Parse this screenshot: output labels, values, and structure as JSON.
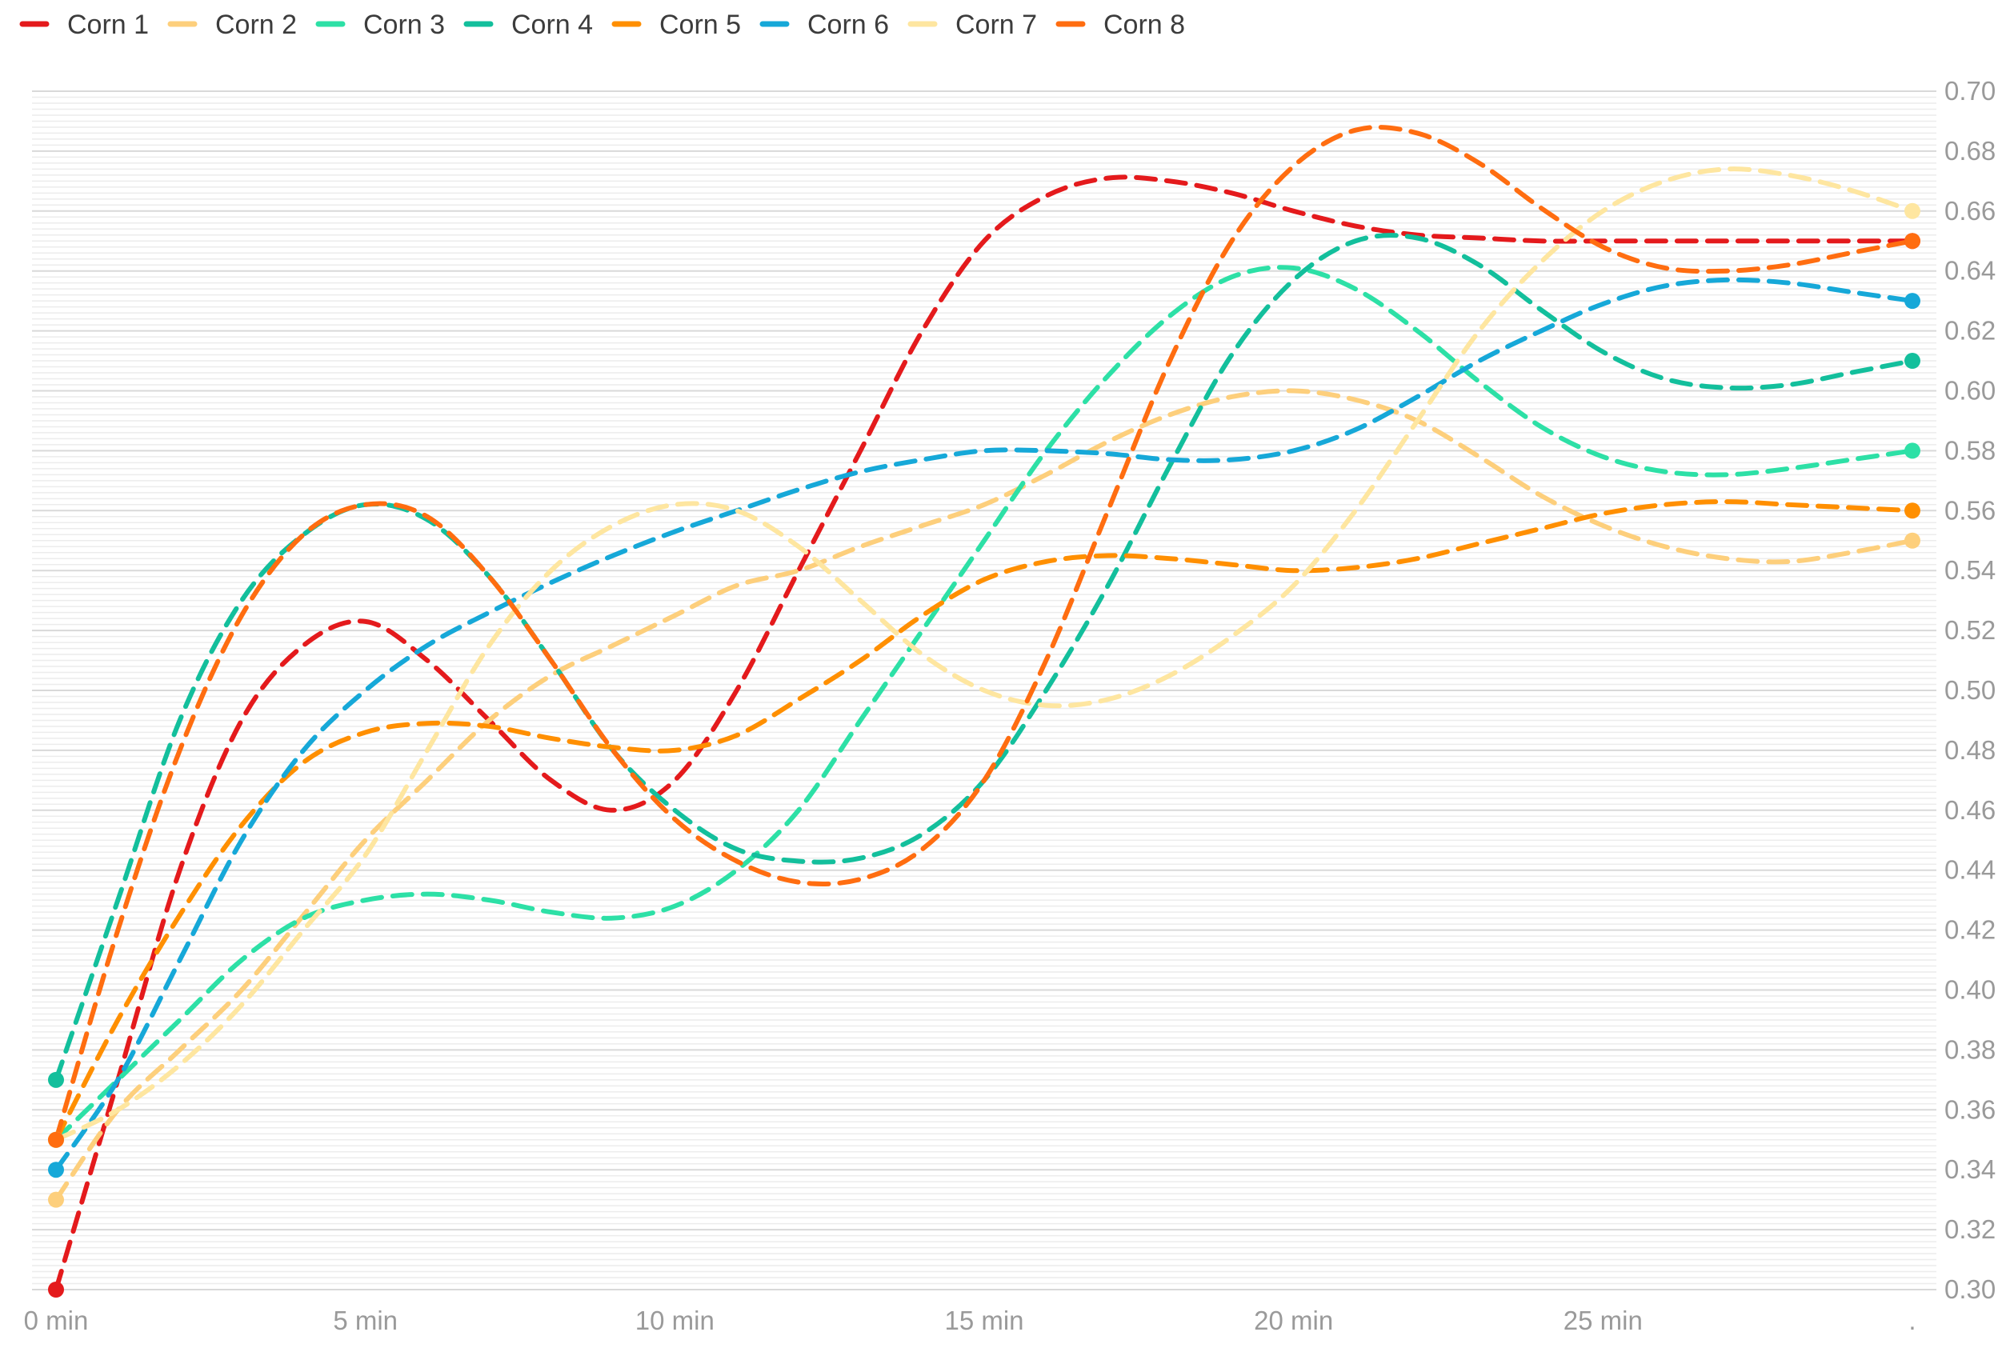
{
  "chart_data": {
    "type": "line",
    "title": "",
    "xlabel": "",
    "ylabel": "",
    "x": [
      0,
      30
    ],
    "x_ticks": [
      0,
      5,
      10,
      15,
      20,
      25
    ],
    "x_tick_labels": [
      "0 min",
      "5 min",
      "10 min",
      "15 min",
      "20 min",
      "25 min"
    ],
    "x_end_label": ".",
    "ylim": [
      0.3,
      0.7
    ],
    "y_ticks": [
      0.3,
      0.32,
      0.34,
      0.36,
      0.38,
      0.4,
      0.42,
      0.44,
      0.46,
      0.48,
      0.5,
      0.52,
      0.54,
      0.56,
      0.58,
      0.6,
      0.62,
      0.64,
      0.66,
      0.68,
      0.7
    ],
    "y_tick_labels": [
      "0.30",
      "0.32",
      "0.34",
      "0.36",
      "0.38",
      "0.40",
      "0.42",
      "0.44",
      "0.46",
      "0.48",
      "0.50",
      "0.52",
      "0.54",
      "0.56",
      "0.58",
      "0.60",
      "0.62",
      "0.64",
      "0.66",
      "0.68",
      "0.70"
    ],
    "grid": true,
    "legend_position": "top-left",
    "line_style": "dashed-smooth",
    "series": [
      {
        "name": "Corn 1",
        "color": "#e41a1c",
        "points": [
          [
            0,
            0.3
          ],
          [
            1,
            0.37
          ],
          [
            2,
            0.44
          ],
          [
            3,
            0.49
          ],
          [
            4,
            0.515
          ],
          [
            5,
            0.523
          ],
          [
            6,
            0.51
          ],
          [
            7,
            0.49
          ],
          [
            8,
            0.47
          ],
          [
            9,
            0.46
          ],
          [
            10,
            0.47
          ],
          [
            11,
            0.5
          ],
          [
            12,
            0.54
          ],
          [
            13,
            0.58
          ],
          [
            14,
            0.62
          ],
          [
            15,
            0.65
          ],
          [
            16,
            0.665
          ],
          [
            17,
            0.671
          ],
          [
            18,
            0.67
          ],
          [
            19,
            0.666
          ],
          [
            20,
            0.66
          ],
          [
            21,
            0.655
          ],
          [
            22,
            0.652
          ],
          [
            23,
            0.651
          ],
          [
            24,
            0.65
          ],
          [
            25,
            0.65
          ],
          [
            26,
            0.65
          ],
          [
            27,
            0.65
          ],
          [
            28,
            0.65
          ],
          [
            29,
            0.65
          ],
          [
            30,
            0.65
          ]
        ]
      },
      {
        "name": "Corn 2",
        "color": "#fdcf7c",
        "points": [
          [
            0,
            0.33
          ],
          [
            1,
            0.36
          ],
          [
            2,
            0.38
          ],
          [
            3,
            0.4
          ],
          [
            4,
            0.425
          ],
          [
            5,
            0.45
          ],
          [
            6,
            0.47
          ],
          [
            7,
            0.49
          ],
          [
            8,
            0.505
          ],
          [
            9,
            0.515
          ],
          [
            10,
            0.525
          ],
          [
            11,
            0.535
          ],
          [
            12,
            0.54
          ],
          [
            13,
            0.548
          ],
          [
            14,
            0.555
          ],
          [
            15,
            0.562
          ],
          [
            16,
            0.572
          ],
          [
            17,
            0.583
          ],
          [
            18,
            0.592
          ],
          [
            19,
            0.598
          ],
          [
            20,
            0.6
          ],
          [
            21,
            0.597
          ],
          [
            22,
            0.59
          ],
          [
            23,
            0.578
          ],
          [
            24,
            0.565
          ],
          [
            25,
            0.555
          ],
          [
            26,
            0.548
          ],
          [
            27,
            0.544
          ],
          [
            28,
            0.543
          ],
          [
            29,
            0.546
          ],
          [
            30,
            0.55
          ]
        ]
      },
      {
        "name": "Corn 3",
        "color": "#2de0a6",
        "points": [
          [
            0,
            0.35
          ],
          [
            1,
            0.37
          ],
          [
            2,
            0.39
          ],
          [
            3,
            0.41
          ],
          [
            4,
            0.424
          ],
          [
            5,
            0.43
          ],
          [
            6,
            0.432
          ],
          [
            7,
            0.43
          ],
          [
            8,
            0.426
          ],
          [
            9,
            0.424
          ],
          [
            10,
            0.428
          ],
          [
            11,
            0.44
          ],
          [
            12,
            0.46
          ],
          [
            13,
            0.49
          ],
          [
            14,
            0.52
          ],
          [
            15,
            0.55
          ],
          [
            16,
            0.58
          ],
          [
            17,
            0.605
          ],
          [
            18,
            0.625
          ],
          [
            19,
            0.638
          ],
          [
            20,
            0.641
          ],
          [
            21,
            0.634
          ],
          [
            22,
            0.62
          ],
          [
            23,
            0.603
          ],
          [
            24,
            0.588
          ],
          [
            25,
            0.578
          ],
          [
            26,
            0.573
          ],
          [
            27,
            0.572
          ],
          [
            28,
            0.574
          ],
          [
            29,
            0.577
          ],
          [
            30,
            0.58
          ]
        ]
      },
      {
        "name": "Corn 4",
        "color": "#13bf9c",
        "points": [
          [
            0,
            0.37
          ],
          [
            1,
            0.43
          ],
          [
            2,
            0.49
          ],
          [
            3,
            0.53
          ],
          [
            4,
            0.552
          ],
          [
            5,
            0.562
          ],
          [
            6,
            0.557
          ],
          [
            7,
            0.538
          ],
          [
            8,
            0.51
          ],
          [
            9,
            0.48
          ],
          [
            10,
            0.46
          ],
          [
            11,
            0.447
          ],
          [
            12,
            0.443
          ],
          [
            13,
            0.444
          ],
          [
            14,
            0.452
          ],
          [
            15,
            0.47
          ],
          [
            16,
            0.5
          ],
          [
            17,
            0.535
          ],
          [
            18,
            0.575
          ],
          [
            19,
            0.612
          ],
          [
            20,
            0.637
          ],
          [
            21,
            0.65
          ],
          [
            22,
            0.651
          ],
          [
            23,
            0.642
          ],
          [
            24,
            0.627
          ],
          [
            25,
            0.613
          ],
          [
            26,
            0.604
          ],
          [
            27,
            0.601
          ],
          [
            28,
            0.602
          ],
          [
            29,
            0.606
          ],
          [
            30,
            0.61
          ]
        ]
      },
      {
        "name": "Corn 5",
        "color": "#ff8f00",
        "points": [
          [
            0,
            0.35
          ],
          [
            1,
            0.39
          ],
          [
            2,
            0.425
          ],
          [
            3,
            0.455
          ],
          [
            4,
            0.476
          ],
          [
            5,
            0.486
          ],
          [
            6,
            0.489
          ],
          [
            7,
            0.488
          ],
          [
            8,
            0.484
          ],
          [
            9,
            0.481
          ],
          [
            10,
            0.48
          ],
          [
            11,
            0.485
          ],
          [
            12,
            0.497
          ],
          [
            13,
            0.51
          ],
          [
            14,
            0.525
          ],
          [
            15,
            0.537
          ],
          [
            16,
            0.543
          ],
          [
            17,
            0.545
          ],
          [
            18,
            0.544
          ],
          [
            19,
            0.542
          ],
          [
            20,
            0.54
          ],
          [
            21,
            0.541
          ],
          [
            22,
            0.544
          ],
          [
            23,
            0.549
          ],
          [
            24,
            0.554
          ],
          [
            25,
            0.559
          ],
          [
            26,
            0.562
          ],
          [
            27,
            0.563
          ],
          [
            28,
            0.562
          ],
          [
            29,
            0.561
          ],
          [
            30,
            0.56
          ]
        ]
      },
      {
        "name": "Corn 6",
        "color": "#16a8d8",
        "points": [
          [
            0,
            0.34
          ],
          [
            1,
            0.37
          ],
          [
            2,
            0.41
          ],
          [
            3,
            0.45
          ],
          [
            4,
            0.48
          ],
          [
            5,
            0.5
          ],
          [
            6,
            0.515
          ],
          [
            7,
            0.526
          ],
          [
            8,
            0.536
          ],
          [
            9,
            0.545
          ],
          [
            10,
            0.553
          ],
          [
            11,
            0.56
          ],
          [
            12,
            0.567
          ],
          [
            13,
            0.573
          ],
          [
            14,
            0.577
          ],
          [
            15,
            0.58
          ],
          [
            16,
            0.58
          ],
          [
            17,
            0.579
          ],
          [
            18,
            0.577
          ],
          [
            19,
            0.577
          ],
          [
            20,
            0.58
          ],
          [
            21,
            0.587
          ],
          [
            22,
            0.598
          ],
          [
            23,
            0.61
          ],
          [
            24,
            0.62
          ],
          [
            25,
            0.629
          ],
          [
            26,
            0.635
          ],
          [
            27,
            0.637
          ],
          [
            28,
            0.636
          ],
          [
            29,
            0.633
          ],
          [
            30,
            0.63
          ]
        ]
      },
      {
        "name": "Corn 7",
        "color": "#fee6a0",
        "points": [
          [
            0,
            0.35
          ],
          [
            1,
            0.36
          ],
          [
            2,
            0.375
          ],
          [
            3,
            0.395
          ],
          [
            4,
            0.42
          ],
          [
            5,
            0.445
          ],
          [
            6,
            0.48
          ],
          [
            7,
            0.515
          ],
          [
            8,
            0.54
          ],
          [
            9,
            0.555
          ],
          [
            10,
            0.562
          ],
          [
            11,
            0.56
          ],
          [
            12,
            0.548
          ],
          [
            13,
            0.53
          ],
          [
            14,
            0.512
          ],
          [
            15,
            0.5
          ],
          [
            16,
            0.495
          ],
          [
            17,
            0.497
          ],
          [
            18,
            0.505
          ],
          [
            19,
            0.518
          ],
          [
            20,
            0.535
          ],
          [
            21,
            0.56
          ],
          [
            22,
            0.59
          ],
          [
            23,
            0.62
          ],
          [
            24,
            0.643
          ],
          [
            25,
            0.66
          ],
          [
            26,
            0.67
          ],
          [
            27,
            0.674
          ],
          [
            28,
            0.672
          ],
          [
            29,
            0.667
          ],
          [
            30,
            0.66
          ]
        ]
      },
      {
        "name": "Corn 8",
        "color": "#ff6d10",
        "points": [
          [
            0,
            0.35
          ],
          [
            1,
            0.42
          ],
          [
            2,
            0.48
          ],
          [
            3,
            0.525
          ],
          [
            4,
            0.552
          ],
          [
            5,
            0.562
          ],
          [
            6,
            0.558
          ],
          [
            7,
            0.538
          ],
          [
            8,
            0.51
          ],
          [
            9,
            0.48
          ],
          [
            10,
            0.457
          ],
          [
            11,
            0.443
          ],
          [
            12,
            0.436
          ],
          [
            13,
            0.437
          ],
          [
            14,
            0.447
          ],
          [
            15,
            0.47
          ],
          [
            16,
            0.51
          ],
          [
            17,
            0.56
          ],
          [
            18,
            0.61
          ],
          [
            19,
            0.65
          ],
          [
            20,
            0.675
          ],
          [
            21,
            0.687
          ],
          [
            22,
            0.686
          ],
          [
            23,
            0.676
          ],
          [
            24,
            0.661
          ],
          [
            25,
            0.648
          ],
          [
            26,
            0.641
          ],
          [
            27,
            0.64
          ],
          [
            28,
            0.642
          ],
          [
            29,
            0.646
          ],
          [
            30,
            0.65
          ]
        ]
      }
    ]
  }
}
